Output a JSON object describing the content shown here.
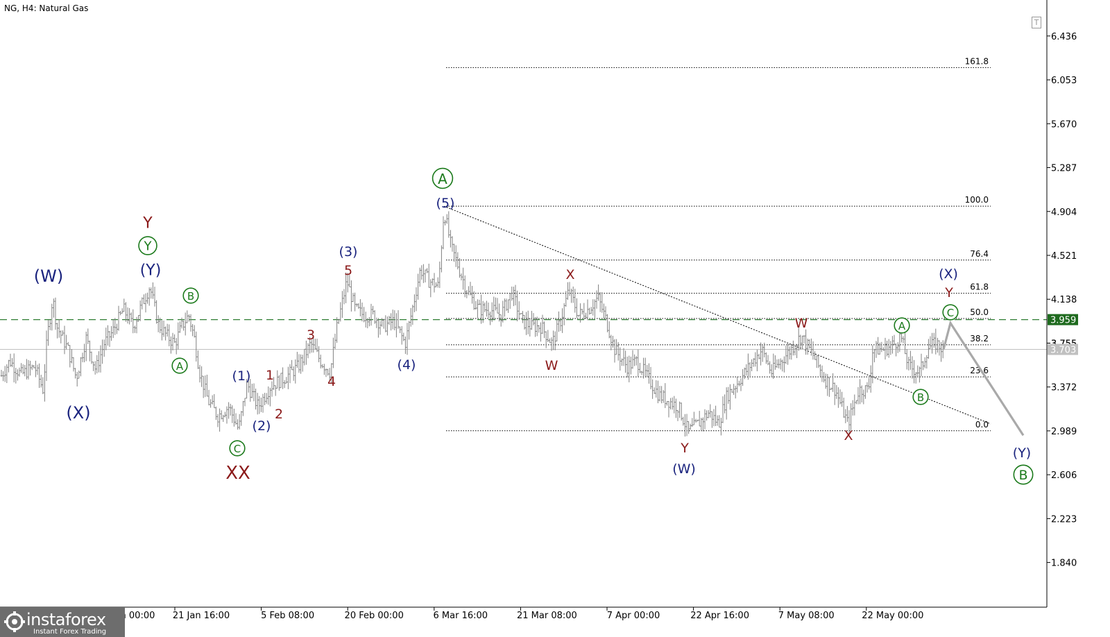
{
  "chart": {
    "title": "NG, H4:  Natural Gas"
  },
  "logo": {
    "name": "instaforex",
    "tagline": "Instant Forex Trading"
  },
  "chart_data": {
    "type": "ohlc",
    "symbol": "NG",
    "timeframe": "H4",
    "instrument": "Natural Gas",
    "bar_color": "#808080",
    "ylim": [
      1.45,
      6.75
    ],
    "y_ticks": [
      "6.436",
      "6.053",
      "5.670",
      "5.287",
      "4.904",
      "4.521",
      "4.138",
      "3.755",
      "3.372",
      "2.989",
      "2.606",
      "2.223",
      "1.840"
    ],
    "x_tick_labels": [
      "21 Jan 16:00",
      "5 Feb 08:00",
      "20 Feb 00:00",
      "6 Mar 16:00",
      "21 Mar 08:00",
      "7 Apr 00:00",
      "22 Apr 16:00",
      "7 May 08:00",
      "22 May 00:00"
    ],
    "x_tick_partial": "1 ... an 00:00",
    "price_path": [
      [
        0,
        3.45
      ],
      [
        14,
        3.6
      ],
      [
        30,
        3.48
      ],
      [
        50,
        3.55
      ],
      [
        62,
        3.35
      ],
      [
        68,
        3.8
      ],
      [
        76,
        4.15
      ],
      [
        82,
        3.9
      ],
      [
        98,
        3.7
      ],
      [
        110,
        3.45
      ],
      [
        124,
        3.8
      ],
      [
        138,
        3.52
      ],
      [
        150,
        3.75
      ],
      [
        162,
        3.85
      ],
      [
        178,
        4.05
      ],
      [
        192,
        3.9
      ],
      [
        205,
        4.1
      ],
      [
        216,
        4.25
      ],
      [
        228,
        3.92
      ],
      [
        240,
        3.82
      ],
      [
        252,
        3.75
      ],
      [
        262,
        3.9
      ],
      [
        272,
        4.0
      ],
      [
        280,
        3.8
      ],
      [
        288,
        3.5
      ],
      [
        300,
        3.25
      ],
      [
        314,
        3.12
      ],
      [
        330,
        3.2
      ],
      [
        344,
        3.0
      ],
      [
        356,
        3.4
      ],
      [
        372,
        3.2
      ],
      [
        390,
        3.38
      ],
      [
        410,
        3.45
      ],
      [
        430,
        3.55
      ],
      [
        448,
        3.75
      ],
      [
        462,
        3.6
      ],
      [
        476,
        3.5
      ],
      [
        486,
        3.9
      ],
      [
        500,
        4.3
      ],
      [
        512,
        4.05
      ],
      [
        524,
        4.0
      ],
      [
        538,
        4.0
      ],
      [
        552,
        3.9
      ],
      [
        568,
        3.95
      ],
      [
        584,
        3.75
      ],
      [
        596,
        4.1
      ],
      [
        606,
        4.4
      ],
      [
        618,
        4.3
      ],
      [
        632,
        4.25
      ],
      [
        640,
        4.92
      ],
      [
        650,
        4.6
      ],
      [
        662,
        4.4
      ],
      [
        674,
        4.2
      ],
      [
        690,
        4.05
      ],
      [
        706,
        4.05
      ],
      [
        722,
        4.0
      ],
      [
        738,
        4.2
      ],
      [
        752,
        3.95
      ],
      [
        766,
        3.9
      ],
      [
        780,
        3.9
      ],
      [
        796,
        3.75
      ],
      [
        808,
        3.95
      ],
      [
        820,
        4.22
      ],
      [
        834,
        4.0
      ],
      [
        848,
        4.05
      ],
      [
        862,
        4.15
      ],
      [
        874,
        3.95
      ],
      [
        886,
        3.7
      ],
      [
        904,
        3.55
      ],
      [
        918,
        3.6
      ],
      [
        934,
        3.45
      ],
      [
        950,
        3.3
      ],
      [
        964,
        3.25
      ],
      [
        978,
        3.2
      ],
      [
        992,
        2.98
      ],
      [
        1006,
        3.05
      ],
      [
        1022,
        3.15
      ],
      [
        1036,
        3.05
      ],
      [
        1048,
        3.3
      ],
      [
        1062,
        3.4
      ],
      [
        1080,
        3.55
      ],
      [
        1098,
        3.7
      ],
      [
        1112,
        3.5
      ],
      [
        1126,
        3.6
      ],
      [
        1140,
        3.7
      ],
      [
        1155,
        3.82
      ],
      [
        1172,
        3.65
      ],
      [
        1188,
        3.45
      ],
      [
        1204,
        3.35
      ],
      [
        1222,
        3.05
      ],
      [
        1238,
        3.35
      ],
      [
        1252,
        3.35
      ],
      [
        1258,
        3.7
      ],
      [
        1274,
        3.7
      ],
      [
        1290,
        3.75
      ],
      [
        1298,
        3.82
      ],
      [
        1310,
        3.55
      ],
      [
        1326,
        3.5
      ],
      [
        1338,
        3.72
      ],
      [
        1350,
        3.75
      ],
      [
        1360,
        3.7
      ]
    ],
    "projection": [
      [
        1360,
        3.7
      ],
      [
        1370,
        3.93
      ],
      [
        1475,
        2.95
      ]
    ],
    "fib_levels": [
      {
        "label": "161.8",
        "value": 6.16
      },
      {
        "label": "100.0",
        "value": 4.95
      },
      {
        "label": "76.4",
        "value": 4.48
      },
      {
        "label": "61.8",
        "value": 4.19
      },
      {
        "label": "50.0",
        "value": 3.97
      },
      {
        "label": "38.2",
        "value": 3.74
      },
      {
        "label": "23.6",
        "value": 3.46
      },
      {
        "label": "0.0",
        "value": 2.99
      }
    ],
    "fib_x_range": [
      643,
      1428
    ],
    "trendline": {
      "from": [
        640,
        4.95
      ],
      "to": [
        1428,
        3.05
      ]
    },
    "level_lines": [
      {
        "name": "resistance",
        "label": "3.959",
        "value": 3.96,
        "color": "#2e7d32",
        "bg": "#1f6b1f",
        "style": "dashed"
      },
      {
        "name": "current",
        "label": "3.703",
        "value": 3.7,
        "color": "#c0c0c0",
        "bg": "#c0c0c0",
        "style": "solid"
      }
    ],
    "axis_partial_label": "3.755",
    "wave_labels": [
      {
        "t": "(W)",
        "x": 70,
        "y": 398,
        "c": "#1a237e",
        "s": 24,
        "circ": false
      },
      {
        "t": "(X)",
        "x": 113,
        "y": 595,
        "c": "#1a237e",
        "s": 24,
        "circ": false
      },
      {
        "t": "Y",
        "x": 213,
        "y": 322,
        "c": "#8b1a1a",
        "s": 22,
        "circ": false
      },
      {
        "t": "Y",
        "x": 213,
        "y": 354,
        "c": "#1b7a1b",
        "s": 18,
        "circ": true
      },
      {
        "t": "(Y)",
        "x": 217,
        "y": 390,
        "c": "#1a237e",
        "s": 22,
        "circ": false
      },
      {
        "t": "B",
        "x": 275,
        "y": 426,
        "c": "#1b7a1b",
        "s": 15,
        "circ": true
      },
      {
        "t": "A",
        "x": 259,
        "y": 527,
        "c": "#1b7a1b",
        "s": 15,
        "circ": true
      },
      {
        "t": "C",
        "x": 342,
        "y": 646,
        "c": "#1b7a1b",
        "s": 15,
        "circ": true
      },
      {
        "t": "XX",
        "x": 343,
        "y": 682,
        "c": "#8b1a1a",
        "s": 26,
        "circ": false
      },
      {
        "t": "(1)",
        "x": 348,
        "y": 542,
        "c": "#1a237e",
        "s": 19,
        "circ": false
      },
      {
        "t": "(2)",
        "x": 377,
        "y": 614,
        "c": "#1a237e",
        "s": 19,
        "circ": false
      },
      {
        "t": "1",
        "x": 389,
        "y": 541,
        "c": "#8b1a1a",
        "s": 19,
        "circ": false
      },
      {
        "t": "2",
        "x": 402,
        "y": 597,
        "c": "#8b1a1a",
        "s": 19,
        "circ": false
      },
      {
        "t": "3",
        "x": 448,
        "y": 483,
        "c": "#8b1a1a",
        "s": 19,
        "circ": false
      },
      {
        "t": "4",
        "x": 478,
        "y": 550,
        "c": "#8b1a1a",
        "s": 19,
        "circ": false
      },
      {
        "t": "(3)",
        "x": 502,
        "y": 363,
        "c": "#1a237e",
        "s": 19,
        "circ": false
      },
      {
        "t": "5",
        "x": 502,
        "y": 390,
        "c": "#8b1a1a",
        "s": 19,
        "circ": false
      },
      {
        "t": "(4)",
        "x": 586,
        "y": 526,
        "c": "#1a237e",
        "s": 19,
        "circ": false
      },
      {
        "t": "A",
        "x": 638,
        "y": 257,
        "c": "#1b7a1b",
        "s": 20,
        "circ": true
      },
      {
        "t": "(5)",
        "x": 642,
        "y": 293,
        "c": "#1a237e",
        "s": 19,
        "circ": false
      },
      {
        "t": "X",
        "x": 822,
        "y": 396,
        "c": "#8b1a1a",
        "s": 19,
        "circ": false
      },
      {
        "t": "W",
        "x": 795,
        "y": 527,
        "c": "#8b1a1a",
        "s": 19,
        "circ": false
      },
      {
        "t": "Y",
        "x": 987,
        "y": 646,
        "c": "#8b1a1a",
        "s": 19,
        "circ": false
      },
      {
        "t": "(W)",
        "x": 986,
        "y": 676,
        "c": "#1a237e",
        "s": 19,
        "circ": false
      },
      {
        "t": "W",
        "x": 1155,
        "y": 466,
        "c": "#8b1a1a",
        "s": 19,
        "circ": false
      },
      {
        "t": "X",
        "x": 1223,
        "y": 628,
        "c": "#8b1a1a",
        "s": 19,
        "circ": false
      },
      {
        "t": "A",
        "x": 1300,
        "y": 469,
        "c": "#1b7a1b",
        "s": 15,
        "circ": true
      },
      {
        "t": "B",
        "x": 1327,
        "y": 572,
        "c": "#1b7a1b",
        "s": 15,
        "circ": true
      },
      {
        "t": "(X)",
        "x": 1367,
        "y": 395,
        "c": "#1a237e",
        "s": 19,
        "circ": false
      },
      {
        "t": "Y",
        "x": 1368,
        "y": 422,
        "c": "#8b1a1a",
        "s": 19,
        "circ": false
      },
      {
        "t": "C",
        "x": 1370,
        "y": 450,
        "c": "#1b7a1b",
        "s": 15,
        "circ": true
      },
      {
        "t": "(Y)",
        "x": 1473,
        "y": 653,
        "c": "#1a237e",
        "s": 19,
        "circ": false
      },
      {
        "t": "B",
        "x": 1475,
        "y": 684,
        "c": "#1b7a1b",
        "s": 19,
        "circ": true
      }
    ]
  }
}
